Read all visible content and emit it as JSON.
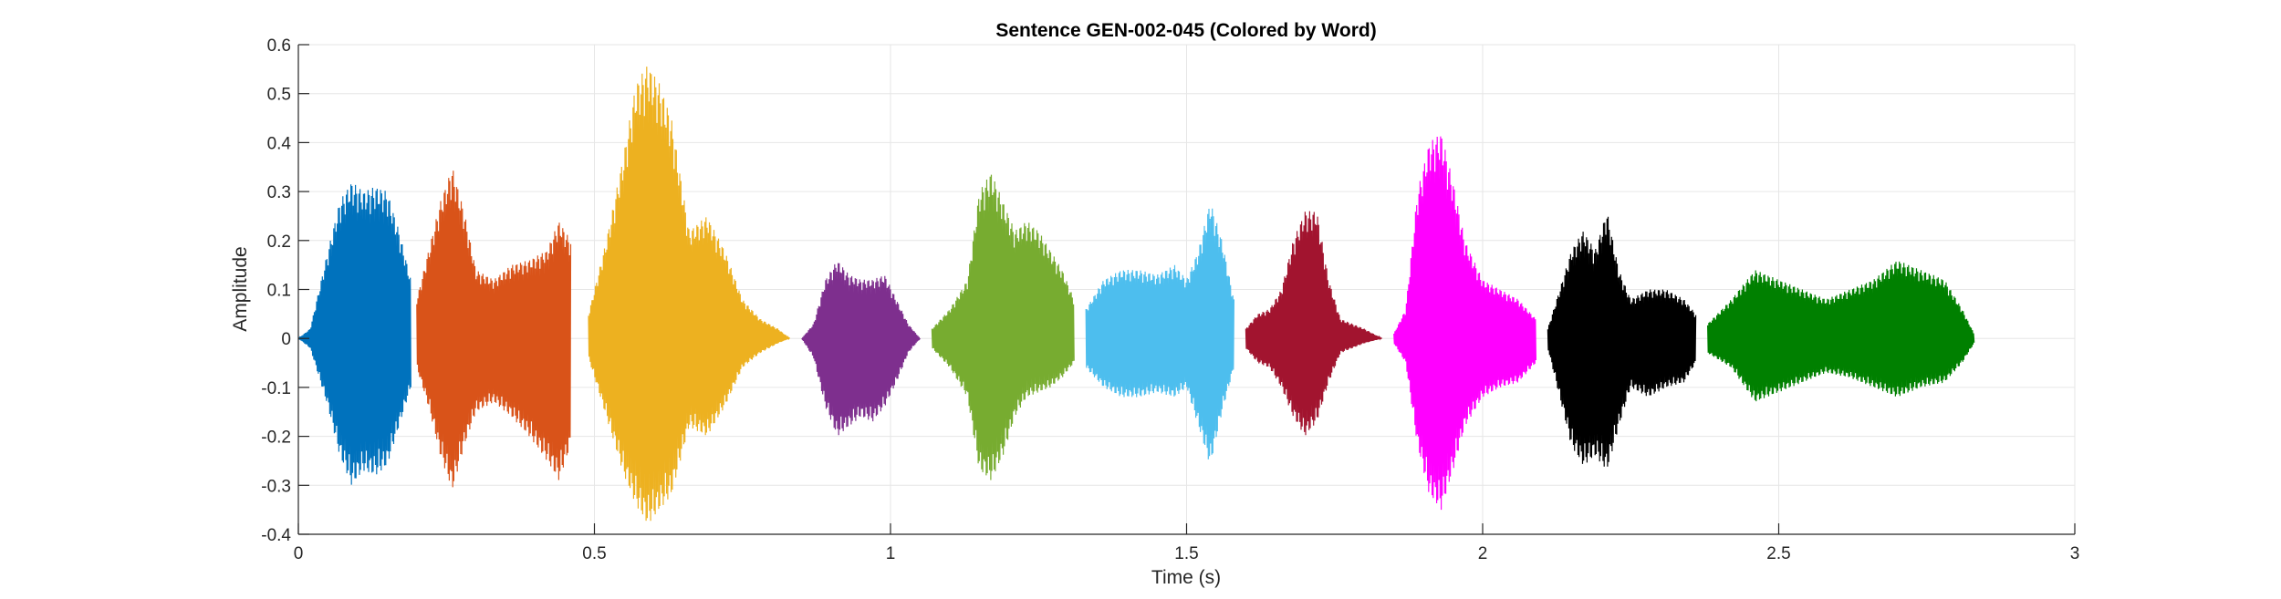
{
  "chart_data": {
    "type": "line",
    "title": "Sentence GEN-002-045 (Colored by Word)",
    "xlabel": "Time (s)",
    "ylabel": "Amplitude",
    "xlim": [
      0,
      3
    ],
    "ylim": [
      -0.4,
      0.6
    ],
    "x_ticks": [
      0,
      0.5,
      1,
      1.5,
      2,
      2.5,
      3
    ],
    "x_tick_labels": [
      "0",
      "0.5",
      "1",
      "1.5",
      "2",
      "2.5",
      "3"
    ],
    "y_ticks": [
      -0.4,
      -0.3,
      -0.2,
      -0.1,
      0,
      0.1,
      0.2,
      0.3,
      0.4,
      0.5,
      0.6
    ],
    "y_tick_labels": [
      "-0.4",
      "-0.3",
      "-0.2",
      "-0.1",
      "0",
      "0.1",
      "0.2",
      "0.3",
      "0.4",
      "0.5",
      "0.6"
    ],
    "grid": true,
    "legend": "none",
    "series": [
      {
        "color": "#0072BD",
        "x": [
          0.0,
          0.02,
          0.05,
          0.07,
          0.09,
          0.11,
          0.13,
          0.15,
          0.17,
          0.19
        ],
        "envelope_max": [
          0.0,
          0.02,
          0.18,
          0.28,
          0.32,
          0.3,
          0.31,
          0.3,
          0.22,
          0.12
        ],
        "envelope_min": [
          0.0,
          -0.02,
          -0.14,
          -0.24,
          -0.3,
          -0.27,
          -0.28,
          -0.26,
          -0.18,
          -0.1
        ]
      },
      {
        "color": "#D95319",
        "x": [
          0.2,
          0.22,
          0.24,
          0.26,
          0.28,
          0.3,
          0.33,
          0.36,
          0.39,
          0.42,
          0.44,
          0.46
        ],
        "envelope_max": [
          0.08,
          0.18,
          0.28,
          0.35,
          0.26,
          0.14,
          0.12,
          0.15,
          0.16,
          0.18,
          0.24,
          0.2
        ],
        "envelope_min": [
          -0.06,
          -0.14,
          -0.24,
          -0.31,
          -0.22,
          -0.15,
          -0.13,
          -0.16,
          -0.2,
          -0.25,
          -0.29,
          -0.22
        ]
      },
      {
        "color": "#EDB120",
        "x": [
          0.49,
          0.52,
          0.55,
          0.57,
          0.59,
          0.61,
          0.63,
          0.66,
          0.69,
          0.72,
          0.75,
          0.78,
          0.81,
          0.83
        ],
        "envelope_max": [
          0.05,
          0.2,
          0.38,
          0.52,
          0.56,
          0.52,
          0.45,
          0.22,
          0.25,
          0.18,
          0.08,
          0.04,
          0.02,
          0.0
        ],
        "envelope_min": [
          -0.04,
          -0.16,
          -0.28,
          -0.34,
          -0.38,
          -0.35,
          -0.32,
          -0.18,
          -0.2,
          -0.14,
          -0.06,
          -0.03,
          -0.01,
          0.0
        ]
      },
      {
        "color": "#7E2F8E",
        "x": [
          0.85,
          0.87,
          0.89,
          0.91,
          0.93,
          0.95,
          0.97,
          0.99,
          1.01,
          1.03,
          1.05
        ],
        "envelope_max": [
          0.0,
          0.03,
          0.12,
          0.16,
          0.13,
          0.12,
          0.12,
          0.13,
          0.08,
          0.03,
          0.0
        ],
        "envelope_min": [
          0.0,
          -0.04,
          -0.14,
          -0.2,
          -0.18,
          -0.16,
          -0.17,
          -0.14,
          -0.09,
          -0.03,
          0.0
        ]
      },
      {
        "color": "#77AC30",
        "x": [
          1.07,
          1.1,
          1.13,
          1.15,
          1.17,
          1.19,
          1.21,
          1.23,
          1.25,
          1.27,
          1.29,
          1.31
        ],
        "envelope_max": [
          0.02,
          0.06,
          0.12,
          0.3,
          0.34,
          0.28,
          0.22,
          0.24,
          0.22,
          0.18,
          0.14,
          0.08
        ],
        "envelope_min": [
          -0.02,
          -0.06,
          -0.12,
          -0.27,
          -0.29,
          -0.24,
          -0.16,
          -0.12,
          -0.11,
          -0.1,
          -0.08,
          -0.05
        ]
      },
      {
        "color": "#4DBEEE",
        "x": [
          1.33,
          1.36,
          1.39,
          1.42,
          1.45,
          1.48,
          1.5,
          1.52,
          1.54,
          1.56,
          1.58
        ],
        "envelope_max": [
          0.06,
          0.12,
          0.14,
          0.14,
          0.13,
          0.15,
          0.12,
          0.18,
          0.28,
          0.2,
          0.08
        ],
        "envelope_min": [
          -0.06,
          -0.1,
          -0.12,
          -0.12,
          -0.11,
          -0.12,
          -0.1,
          -0.18,
          -0.26,
          -0.15,
          -0.06
        ]
      },
      {
        "color": "#A2142F",
        "x": [
          1.6,
          1.62,
          1.64,
          1.66,
          1.68,
          1.7,
          1.72,
          1.74,
          1.76,
          1.8,
          1.83
        ],
        "envelope_max": [
          0.02,
          0.05,
          0.06,
          0.1,
          0.2,
          0.26,
          0.26,
          0.12,
          0.04,
          0.02,
          0.0
        ],
        "envelope_min": [
          -0.02,
          -0.05,
          -0.06,
          -0.1,
          -0.16,
          -0.2,
          -0.17,
          -0.09,
          -0.03,
          -0.01,
          0.0
        ]
      },
      {
        "color": "#FF00FF",
        "x": [
          1.85,
          1.87,
          1.89,
          1.91,
          1.93,
          1.95,
          1.97,
          2.0,
          2.03,
          2.06,
          2.09
        ],
        "envelope_max": [
          0.01,
          0.06,
          0.3,
          0.4,
          0.42,
          0.32,
          0.2,
          0.12,
          0.1,
          0.08,
          0.04
        ],
        "envelope_min": [
          -0.01,
          -0.05,
          -0.22,
          -0.32,
          -0.35,
          -0.27,
          -0.18,
          -0.12,
          -0.1,
          -0.09,
          -0.05
        ]
      },
      {
        "color": "#000000",
        "x": [
          2.11,
          2.13,
          2.15,
          2.17,
          2.19,
          2.21,
          2.23,
          2.25,
          2.28,
          2.31,
          2.34,
          2.36
        ],
        "envelope_max": [
          0.02,
          0.1,
          0.18,
          0.22,
          0.18,
          0.26,
          0.14,
          0.08,
          0.1,
          0.1,
          0.08,
          0.05
        ],
        "envelope_min": [
          -0.02,
          -0.12,
          -0.22,
          -0.26,
          -0.24,
          -0.27,
          -0.18,
          -0.1,
          -0.12,
          -0.1,
          -0.09,
          -0.05
        ]
      },
      {
        "color": "#008000",
        "x": [
          2.38,
          2.42,
          2.46,
          2.5,
          2.54,
          2.58,
          2.62,
          2.66,
          2.7,
          2.74,
          2.78,
          2.81,
          2.83
        ],
        "envelope_max": [
          0.03,
          0.08,
          0.14,
          0.12,
          0.1,
          0.08,
          0.1,
          0.12,
          0.16,
          0.14,
          0.12,
          0.06,
          0.01
        ],
        "envelope_min": [
          -0.03,
          -0.06,
          -0.13,
          -0.11,
          -0.09,
          -0.07,
          -0.08,
          -0.1,
          -0.12,
          -0.1,
          -0.09,
          -0.05,
          -0.01
        ]
      }
    ]
  }
}
